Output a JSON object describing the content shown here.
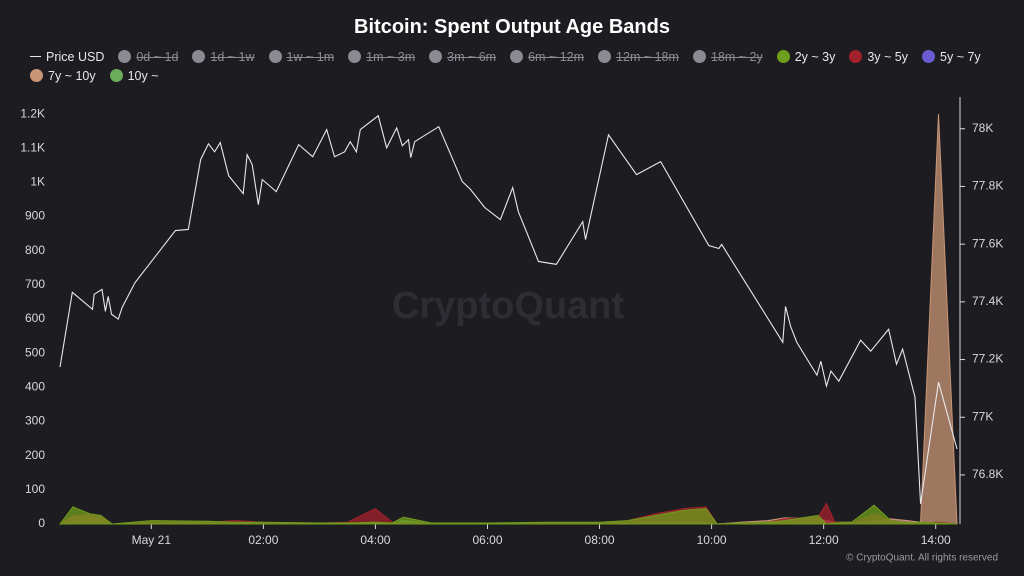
{
  "chart_data": {
    "type": "area",
    "title": "Bitcoin: Spent Output Age Bands",
    "watermark": "CryptoQuant",
    "footer": "© CryptoQuant. All rights reserved",
    "xlim": [
      -1.63,
      14.38
    ],
    "xticks": [
      {
        "value": 0,
        "label": "May 21"
      },
      {
        "value": 2,
        "label": "02:00"
      },
      {
        "value": 4,
        "label": "04:00"
      },
      {
        "value": 6,
        "label": "06:00"
      },
      {
        "value": 8,
        "label": "08:00"
      },
      {
        "value": 10,
        "label": "10:00"
      },
      {
        "value": 12,
        "label": "12:00"
      },
      {
        "value": 14,
        "label": "14:00"
      }
    ],
    "ylim": [
      0,
      1250
    ],
    "yticks": [
      0,
      100,
      200,
      300,
      400,
      500,
      600,
      700,
      800,
      900,
      {
        "value": 1000,
        "label": "1K"
      },
      {
        "value": 1100,
        "label": "1.1K"
      },
      {
        "value": 1200,
        "label": "1.2K"
      }
    ],
    "y2lim": [
      76630,
      78110
    ],
    "y2ticks": [
      {
        "value": 76800,
        "label": "76.8K"
      },
      {
        "value": 77000,
        "label": "77K"
      },
      {
        "value": 77200,
        "label": "77.2K"
      },
      {
        "value": 77400,
        "label": "77.4K"
      },
      {
        "value": 77600,
        "label": "77.6K"
      },
      {
        "value": 77800,
        "label": "77.8K"
      },
      {
        "value": 78000,
        "label": "78K"
      }
    ],
    "grid": false,
    "series": [
      {
        "name": "Price USD",
        "type": "line",
        "axis": "y2",
        "color": "#e8e8ec",
        "x": [
          -1.63,
          -1.41,
          -1.05,
          -1.02,
          -0.88,
          -0.82,
          -0.77,
          -0.71,
          -0.59,
          -0.52,
          -0.29,
          0.43,
          0.66,
          0.88,
          1.02,
          1.13,
          1.23,
          1.38,
          1.64,
          1.71,
          1.8,
          1.91,
          1.98,
          2.23,
          2.63,
          2.88,
          3.13,
          3.27,
          3.45,
          3.55,
          3.66,
          3.73,
          4.05,
          4.2,
          4.38,
          4.48,
          4.59,
          4.63,
          4.7,
          5.13,
          5.55,
          5.7,
          5.95,
          6.23,
          6.45,
          6.55,
          6.91,
          7.23,
          7.7,
          7.75,
          8.16,
          8.66,
          9.09,
          9.95,
          10.13,
          10.18,
          11.27,
          11.32,
          11.41,
          11.52,
          11.88,
          11.95,
          12.05,
          12.13,
          12.27,
          12.66,
          12.84,
          13.16,
          13.3,
          13.41,
          13.63,
          13.73,
          14.05,
          14.38
        ],
        "values": [
          77174,
          77433,
          77374,
          77426,
          77443,
          77367,
          77419,
          77357,
          77340,
          77381,
          77467,
          77647,
          77651,
          77893,
          77948,
          77920,
          77952,
          77837,
          77775,
          77910,
          77876,
          77737,
          77824,
          77782,
          77945,
          77903,
          77997,
          77903,
          77920,
          77955,
          77920,
          77997,
          78045,
          77934,
          78003,
          77941,
          77962,
          77900,
          77955,
          78007,
          77817,
          77789,
          77727,
          77685,
          77796,
          77713,
          77540,
          77530,
          77678,
          77616,
          77979,
          77841,
          77886,
          77595,
          77585,
          77599,
          77260,
          77384,
          77315,
          77260,
          77146,
          77194,
          77108,
          77160,
          77125,
          77267,
          77229,
          77305,
          77184,
          77236,
          77070,
          76700,
          77122,
          76890
        ]
      },
      {
        "name": "0d ~ 1d",
        "visible": false,
        "color": "#8a8a93"
      },
      {
        "name": "1d ~ 1w",
        "visible": false,
        "color": "#8a8a93"
      },
      {
        "name": "1w ~ 1m",
        "visible": false,
        "color": "#8a8a93"
      },
      {
        "name": "1m ~ 3m",
        "visible": false,
        "color": "#8a8a93"
      },
      {
        "name": "3m ~ 6m",
        "visible": false,
        "color": "#8a8a93"
      },
      {
        "name": "6m ~ 12m",
        "visible": false,
        "color": "#8a8a93"
      },
      {
        "name": "12m ~ 18m",
        "visible": false,
        "color": "#8a8a93"
      },
      {
        "name": "18m ~ 2y",
        "visible": false,
        "color": "#8a8a93"
      },
      {
        "name": "2y ~ 3y",
        "color": "#6f9e1c",
        "x": [
          -1.63,
          -1.4,
          -1.1,
          -0.9,
          -0.7,
          0,
          1,
          1.5,
          2,
          3,
          3.5,
          4,
          4.3,
          4.5,
          5,
          6,
          7,
          8,
          8.5,
          9,
          9.5,
          9.9,
          10.1,
          10.5,
          11,
          11.3,
          11.9,
          12.05,
          12.2,
          12.5,
          12.9,
          13.2,
          13.5,
          13.73,
          14.05,
          14.38
        ],
        "values": [
          0,
          50,
          30,
          25,
          0,
          10,
          8,
          5,
          5,
          3,
          3,
          5,
          3,
          20,
          3,
          3,
          5,
          5,
          10,
          25,
          40,
          45,
          0,
          3,
          5,
          10,
          25,
          0,
          3,
          5,
          55,
          10,
          3,
          5,
          3,
          0
        ]
      },
      {
        "name": "3y ~ 5y",
        "color": "#a3212b",
        "x": [
          -1.63,
          -1.4,
          -1.1,
          -0.9,
          -0.7,
          0,
          1,
          1.5,
          2,
          3,
          3.5,
          4,
          4.3,
          4.5,
          5,
          6,
          7,
          8,
          8.5,
          9,
          9.5,
          9.9,
          10.1,
          10.5,
          11,
          11.3,
          11.9,
          12.05,
          12.2,
          12.5,
          12.9,
          13.2,
          13.5,
          13.73,
          14.05,
          14.38
        ],
        "values": [
          0,
          25,
          28,
          20,
          0,
          5,
          5,
          10,
          5,
          3,
          5,
          45,
          5,
          3,
          3,
          3,
          3,
          3,
          10,
          30,
          45,
          50,
          0,
          3,
          5,
          15,
          20,
          60,
          5,
          3,
          30,
          10,
          3,
          3,
          5,
          0
        ]
      },
      {
        "name": "5y ~ 7y",
        "color": "#6b5bd0",
        "x": [
          -1.63,
          -1.4,
          -1.1,
          -0.9,
          -0.7,
          0,
          1,
          1.5,
          2,
          3,
          3.5,
          4,
          4.3,
          4.5,
          5,
          6,
          7,
          8,
          8.5,
          9,
          9.5,
          9.9,
          10.1,
          10.5,
          11,
          11.3,
          11.9,
          12.05,
          12.2,
          12.5,
          12.9,
          13.2,
          13.5,
          13.73,
          14.05,
          14.38
        ],
        "values": [
          0,
          2,
          2,
          2,
          0,
          1,
          1,
          1,
          1,
          1,
          1,
          2,
          1,
          1,
          1,
          1,
          1,
          1,
          1,
          2,
          2,
          2,
          0,
          1,
          1,
          2,
          2,
          2,
          1,
          1,
          5,
          2,
          1,
          1,
          2,
          0
        ]
      },
      {
        "name": "7y ~ 10y",
        "color": "#c99676",
        "x": [
          -1.63,
          -1.4,
          -1.1,
          -0.9,
          -0.7,
          0,
          1,
          1.5,
          2,
          3,
          3.5,
          4,
          4.3,
          4.5,
          5,
          6,
          7,
          8,
          8.5,
          9,
          9.5,
          9.9,
          10.1,
          10.5,
          11,
          11.3,
          11.9,
          12.05,
          12.2,
          12.5,
          12.9,
          13.2,
          13.5,
          13.73,
          14.05,
          14.38
        ],
        "values": [
          0,
          20,
          22,
          20,
          0,
          3,
          3,
          2,
          2,
          2,
          2,
          3,
          2,
          2,
          2,
          2,
          2,
          2,
          3,
          5,
          5,
          5,
          0,
          5,
          10,
          18,
          15,
          10,
          5,
          5,
          8,
          15,
          10,
          5,
          1200,
          0
        ]
      },
      {
        "name": "10y ~",
        "color": "#6aac5a",
        "x": [
          -1.63,
          -1.4,
          -1.1,
          -0.9,
          -0.7,
          0,
          1,
          1.5,
          2,
          3,
          3.5,
          4,
          4.3,
          4.5,
          5,
          6,
          7,
          8,
          8.5,
          9,
          9.5,
          9.9,
          10.1,
          10.5,
          11,
          11.3,
          11.9,
          12.05,
          12.2,
          12.5,
          12.9,
          13.2,
          13.5,
          13.73,
          14.05,
          14.38
        ],
        "values": [
          0,
          10,
          12,
          8,
          0,
          2,
          2,
          2,
          2,
          2,
          2,
          3,
          2,
          10,
          2,
          2,
          2,
          2,
          2,
          3,
          3,
          3,
          0,
          2,
          3,
          4,
          4,
          4,
          2,
          2,
          10,
          5,
          2,
          3,
          5,
          0
        ]
      }
    ]
  }
}
